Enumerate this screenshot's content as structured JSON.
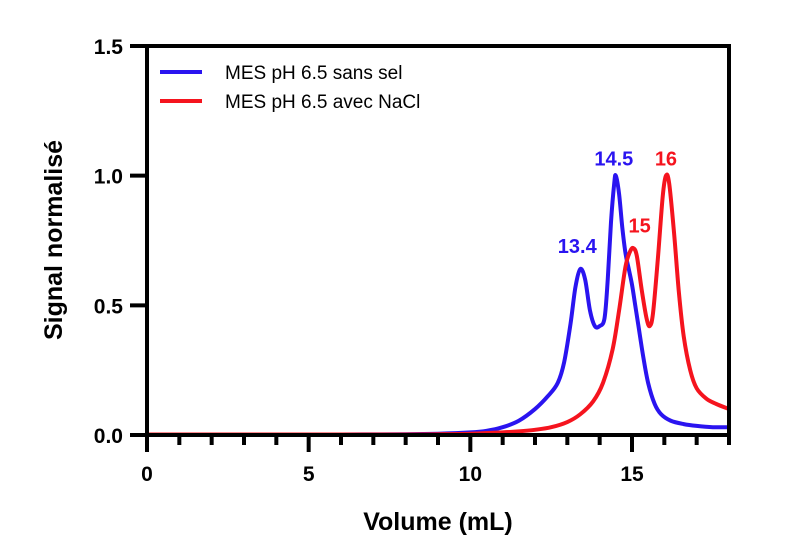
{
  "chart_data": {
    "type": "line",
    "title": "",
    "xlabel": "Volume (mL)",
    "ylabel": "Signal normalisé",
    "xlim": [
      0,
      18
    ],
    "ylim": [
      0,
      1.5
    ],
    "x_ticks": [
      0,
      5,
      10,
      15
    ],
    "x_tick_labels": [
      "0",
      "5",
      "10",
      "15"
    ],
    "x_minor_tick_step": 1,
    "y_ticks": [
      0,
      0.5,
      1.0,
      1.5
    ],
    "y_tick_labels": [
      "0.0",
      "0.5",
      "1.0",
      "1.5"
    ],
    "grid": false,
    "legend_position": "top-left",
    "series": [
      {
        "name": "MES pH 6.5 sans sel",
        "color": "#2a14f0",
        "x": [
          0,
          2,
          4,
          6,
          8,
          9,
          10,
          10.5,
          11,
          11.5,
          12,
          12.4,
          12.7,
          12.9,
          13.1,
          13.25,
          13.4,
          13.55,
          13.7,
          13.85,
          14.0,
          14.15,
          14.25,
          14.35,
          14.45,
          14.5,
          14.6,
          14.7,
          14.8,
          14.9,
          15.0,
          15.1,
          15.2,
          15.35,
          15.5,
          15.7,
          15.9,
          16.2,
          16.6,
          17.0,
          17.5,
          18.0
        ],
        "y": [
          0.002,
          0.002,
          0.002,
          0.002,
          0.003,
          0.005,
          0.01,
          0.016,
          0.03,
          0.055,
          0.1,
          0.15,
          0.2,
          0.28,
          0.43,
          0.57,
          0.64,
          0.6,
          0.48,
          0.42,
          0.42,
          0.45,
          0.6,
          0.82,
          0.97,
          1.0,
          0.93,
          0.8,
          0.7,
          0.64,
          0.58,
          0.5,
          0.42,
          0.3,
          0.2,
          0.12,
          0.08,
          0.055,
          0.042,
          0.035,
          0.03,
          0.03
        ]
      },
      {
        "name": "MES pH 6.5 avec NaCl",
        "color": "#f5141e",
        "x": [
          0,
          2,
          4,
          6,
          8,
          9,
          10,
          11,
          11.5,
          12,
          12.5,
          13,
          13.4,
          13.8,
          14.1,
          14.4,
          14.6,
          14.8,
          14.95,
          15.05,
          15.15,
          15.3,
          15.45,
          15.55,
          15.65,
          15.8,
          15.95,
          16.05,
          16.15,
          16.3,
          16.45,
          16.6,
          16.8,
          17.0,
          17.3,
          17.6,
          18.0
        ],
        "y": [
          0.002,
          0.002,
          0.002,
          0.002,
          0.002,
          0.003,
          0.005,
          0.01,
          0.014,
          0.02,
          0.03,
          0.05,
          0.08,
          0.13,
          0.2,
          0.33,
          0.48,
          0.65,
          0.71,
          0.72,
          0.69,
          0.56,
          0.45,
          0.42,
          0.47,
          0.68,
          0.92,
          1.0,
          0.97,
          0.78,
          0.55,
          0.38,
          0.25,
          0.18,
          0.14,
          0.12,
          0.1
        ]
      }
    ],
    "annotations": [
      {
        "text": "13.4",
        "x": 13.4,
        "y": 0.64,
        "color": "#2a14f0"
      },
      {
        "text": "14.5",
        "x": 14.5,
        "y": 1.0,
        "color": "#2a14f0"
      },
      {
        "text": "15",
        "x": 15.05,
        "y": 0.72,
        "color": "#f5141e"
      },
      {
        "text": "16",
        "x": 16.05,
        "y": 1.0,
        "color": "#f5141e"
      }
    ]
  }
}
